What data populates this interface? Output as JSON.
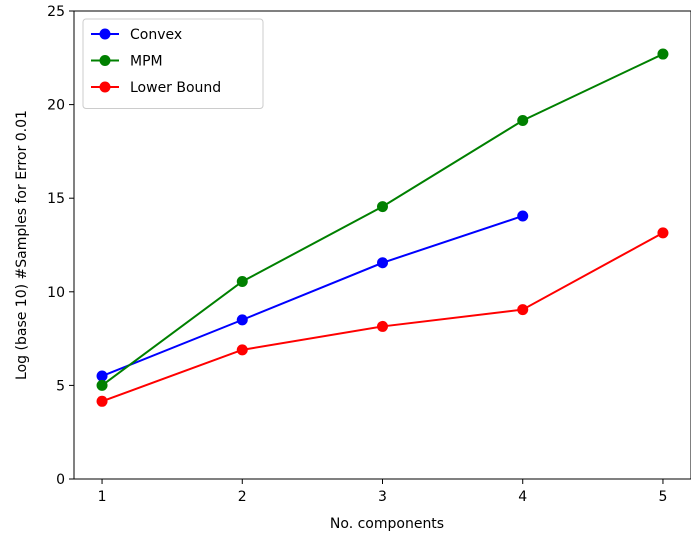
{
  "chart_data": {
    "type": "line",
    "title": "",
    "xlabel": "No. components",
    "ylabel": "Log (base 10) #Samples for Error 0.01",
    "xlim": [
      0.8,
      5.2
    ],
    "ylim": [
      0,
      25
    ],
    "xticks": [
      1,
      2,
      3,
      4,
      5
    ],
    "yticks": [
      0,
      5,
      10,
      15,
      20,
      25
    ],
    "grid": false,
    "legend_position": "upper-left",
    "series": [
      {
        "name": "Convex",
        "color": "#0000ff",
        "x": [
          1,
          2,
          3,
          4
        ],
        "y": [
          5.5,
          8.5,
          11.55,
          14.05
        ]
      },
      {
        "name": "MPM",
        "color": "#008000",
        "x": [
          1,
          2,
          3,
          4,
          5
        ],
        "y": [
          5.0,
          10.55,
          14.55,
          19.15,
          22.7
        ]
      },
      {
        "name": "Lower Bound",
        "color": "#ff0000",
        "x": [
          1,
          2,
          3,
          4,
          5
        ],
        "y": [
          4.15,
          6.9,
          8.15,
          9.05,
          13.15
        ]
      }
    ]
  }
}
